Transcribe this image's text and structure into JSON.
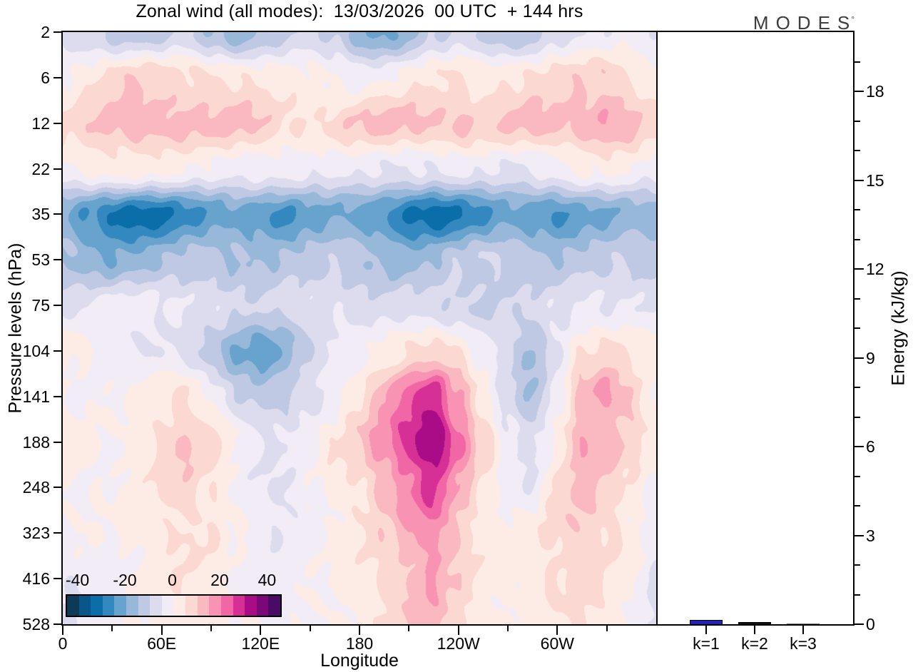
{
  "logo": {
    "text": "MODES",
    "sup": "°"
  },
  "chart_data": [
    {
      "type": "heatmap",
      "title": "Zonal wind (all modes):  13/03/2026  00 UTC  + 144 hrs",
      "xlabel": "Longitude",
      "ylabel": "Pressure levels (hPa)",
      "x_ticks_major": [
        {
          "deg": 0,
          "label": "0"
        },
        {
          "deg": 60,
          "label": "60E"
        },
        {
          "deg": 120,
          "label": "120E"
        },
        {
          "deg": 180,
          "label": "180"
        },
        {
          "deg": 240,
          "label": "120W"
        },
        {
          "deg": 300,
          "label": "60W"
        }
      ],
      "x_ticks_minor_deg": [
        30,
        90,
        150,
        210,
        270,
        330
      ],
      "xlim_deg": [
        0,
        360
      ],
      "y_tick_labels": [
        2,
        6,
        12,
        22,
        35,
        53,
        75,
        104,
        141,
        188,
        248,
        323,
        416,
        528
      ],
      "y_scale": "log-even-spacing",
      "lon_deg": [
        0,
        15,
        30,
        45,
        60,
        75,
        90,
        105,
        120,
        135,
        150,
        165,
        180,
        195,
        210,
        225,
        240,
        255,
        270,
        285,
        300,
        315,
        330,
        345,
        360
      ],
      "values_by_level": [
        [
          -7,
          -9,
          -11,
          -13,
          -12,
          -10,
          -16,
          -18,
          -14,
          -10,
          -9,
          -12,
          -19,
          -22,
          -16,
          -10,
          -9,
          -12,
          -16,
          -12,
          -6,
          -5,
          -4,
          -3,
          -5
        ],
        [
          1,
          4,
          7,
          9,
          8,
          7,
          6,
          5,
          3,
          2,
          1,
          0,
          -1,
          0,
          2,
          4,
          5,
          4,
          5,
          6,
          7,
          8,
          9,
          6,
          2
        ],
        [
          5,
          9,
          12,
          14,
          13,
          12,
          11,
          12,
          10,
          7,
          5,
          7,
          10,
          12,
          12,
          11,
          12,
          9,
          10,
          12,
          12,
          13,
          16,
          12,
          6
        ],
        [
          0,
          2,
          3,
          2,
          1,
          0,
          -1,
          -2,
          -2,
          -3,
          -4,
          -4,
          -3,
          -4,
          -5,
          -5,
          -4,
          -4,
          -5,
          -4,
          -2,
          0,
          1,
          0,
          -2
        ],
        [
          -20,
          -26,
          -31,
          -33,
          -31,
          -27,
          -24,
          -22,
          -24,
          -26,
          -22,
          -20,
          -22,
          -26,
          -31,
          -33,
          -30,
          -26,
          -22,
          -24,
          -26,
          -22,
          -20,
          -18,
          -18
        ],
        [
          -14,
          -17,
          -19,
          -18,
          -16,
          -14,
          -13,
          -14,
          -15,
          -14,
          -13,
          -12,
          -14,
          -16,
          -17,
          -15,
          -12,
          -10,
          -12,
          -13,
          -14,
          -13,
          -12,
          -11,
          -12
        ],
        [
          -6,
          -5,
          -4,
          -3,
          -3,
          -4,
          -6,
          -9,
          -11,
          -8,
          -6,
          -5,
          -7,
          -9,
          -8,
          -8,
          -9,
          -10,
          -10,
          -9,
          -7,
          -5,
          -4,
          -4,
          -5
        ],
        [
          2,
          0,
          -2,
          -4,
          -5,
          -8,
          -14,
          -20,
          -23,
          -18,
          -10,
          -5,
          -3,
          2,
          6,
          8,
          4,
          -4,
          -8,
          -16,
          -4,
          5,
          6,
          3,
          2
        ],
        [
          0,
          -1,
          -1,
          1,
          4,
          6,
          0,
          -9,
          -13,
          -11,
          -7,
          -2,
          6,
          14,
          23,
          28,
          15,
          4,
          -8,
          -15,
          -4,
          12,
          17,
          10,
          0
        ],
        [
          2,
          1,
          0,
          2,
          7,
          11,
          7,
          0,
          -4,
          -4,
          0,
          4,
          10,
          18,
          28,
          37,
          22,
          8,
          -4,
          -7,
          2,
          15,
          12,
          8,
          2
        ],
        [
          1,
          0,
          0,
          2,
          6,
          8,
          5,
          0,
          -5,
          -6,
          -2,
          2,
          6,
          12,
          20,
          26,
          14,
          4,
          -2,
          -4,
          6,
          12,
          8,
          4,
          0
        ],
        [
          0,
          -1,
          0,
          1,
          4,
          6,
          4,
          0,
          -3,
          -4,
          -1,
          1,
          4,
          8,
          14,
          19,
          10,
          3,
          1,
          3,
          7,
          10,
          7,
          2,
          -4
        ],
        [
          -4,
          -3,
          -1,
          0,
          3,
          4,
          3,
          0,
          -2,
          -3,
          -1,
          0,
          3,
          6,
          11,
          15,
          8,
          3,
          2,
          3,
          6,
          8,
          5,
          1,
          -5
        ],
        [
          -5,
          -4,
          -2,
          0,
          2,
          3,
          2,
          0,
          -1,
          -2,
          0,
          1,
          2,
          5,
          9,
          12,
          7,
          2,
          1,
          2,
          4,
          5,
          3,
          -1,
          -6
        ]
      ],
      "levels_min": -45,
      "levels_max": 45,
      "levels_step": 5,
      "colorbar_labels": [
        "-40",
        "-20",
        "0",
        "20",
        "40"
      ],
      "colorbar_label_values": [
        -40,
        -20,
        0,
        20,
        40
      ],
      "palette": [
        "#0d3a54",
        "#09568a",
        "#0c6ea8",
        "#3389bf",
        "#67a3cd",
        "#98b8da",
        "#c0c9e4",
        "#dcdcee",
        "#f1ecf5",
        "#fdece5",
        "#fcd8d2",
        "#fab9c0",
        "#f893b4",
        "#f166a5",
        "#d63096",
        "#aa0c87",
        "#7b0879",
        "#4a0b67"
      ]
    },
    {
      "type": "bar",
      "categories": [
        "k=1",
        "k=2",
        "k=3"
      ],
      "values": [
        0.15,
        0.07,
        0.03
      ],
      "bar_colors": [
        "#2222b8",
        "#101010",
        "#777777"
      ],
      "ylabel": "Energy (kJ/kg)",
      "ylim": [
        0,
        20
      ],
      "y_ticks_major": [
        0,
        3,
        6,
        9,
        12,
        15,
        18
      ],
      "y_minor_step": 1,
      "grid": "off",
      "legend": "none"
    }
  ]
}
